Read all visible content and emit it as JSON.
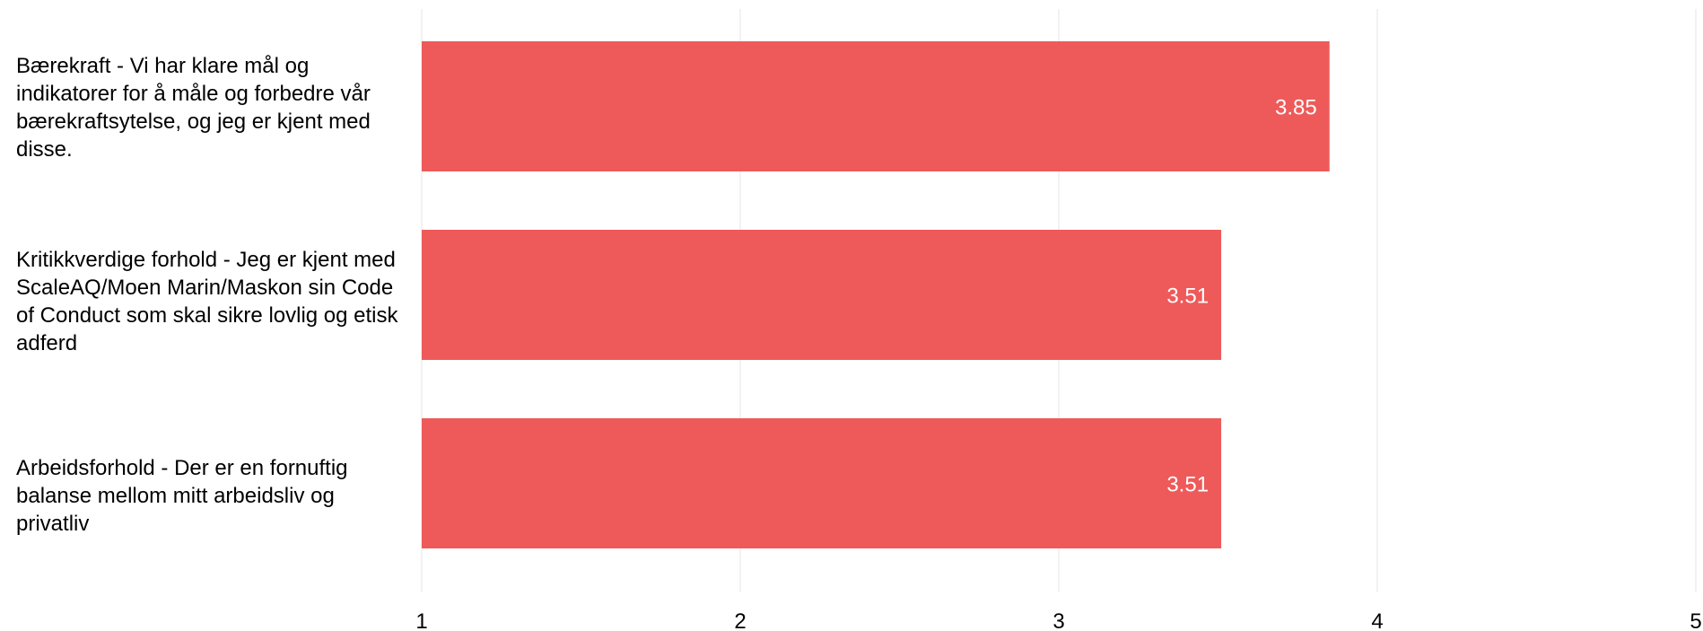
{
  "chart_data": {
    "type": "bar",
    "orientation": "horizontal",
    "categories": [
      "Bærekraft - Vi har klare mål og indikatorer for å måle og forbedre vår bærekraftsytelse, og jeg er kjent med disse.",
      "Kritikkverdige forhold - Jeg er kjent med ScaleAQ/Moen Marin/Maskon sin Code of Conduct som skal sikre lovlig og etisk adferd",
      "Arbeidsforhold - Der er en fornuftig balanse mellom mitt arbeidsliv og privatliv"
    ],
    "values": [
      3.85,
      3.51,
      3.51
    ],
    "value_labels": [
      "3.85",
      "3.51",
      "3.51"
    ],
    "xlim": [
      1,
      5
    ],
    "xticks": [
      1,
      2,
      3,
      4,
      5
    ],
    "xtick_labels": [
      "1",
      "2",
      "3",
      "4",
      "5"
    ],
    "grid": true,
    "legend": "none",
    "bar_color": "#ee5a5a",
    "grid_color": "#e6e6e6"
  }
}
